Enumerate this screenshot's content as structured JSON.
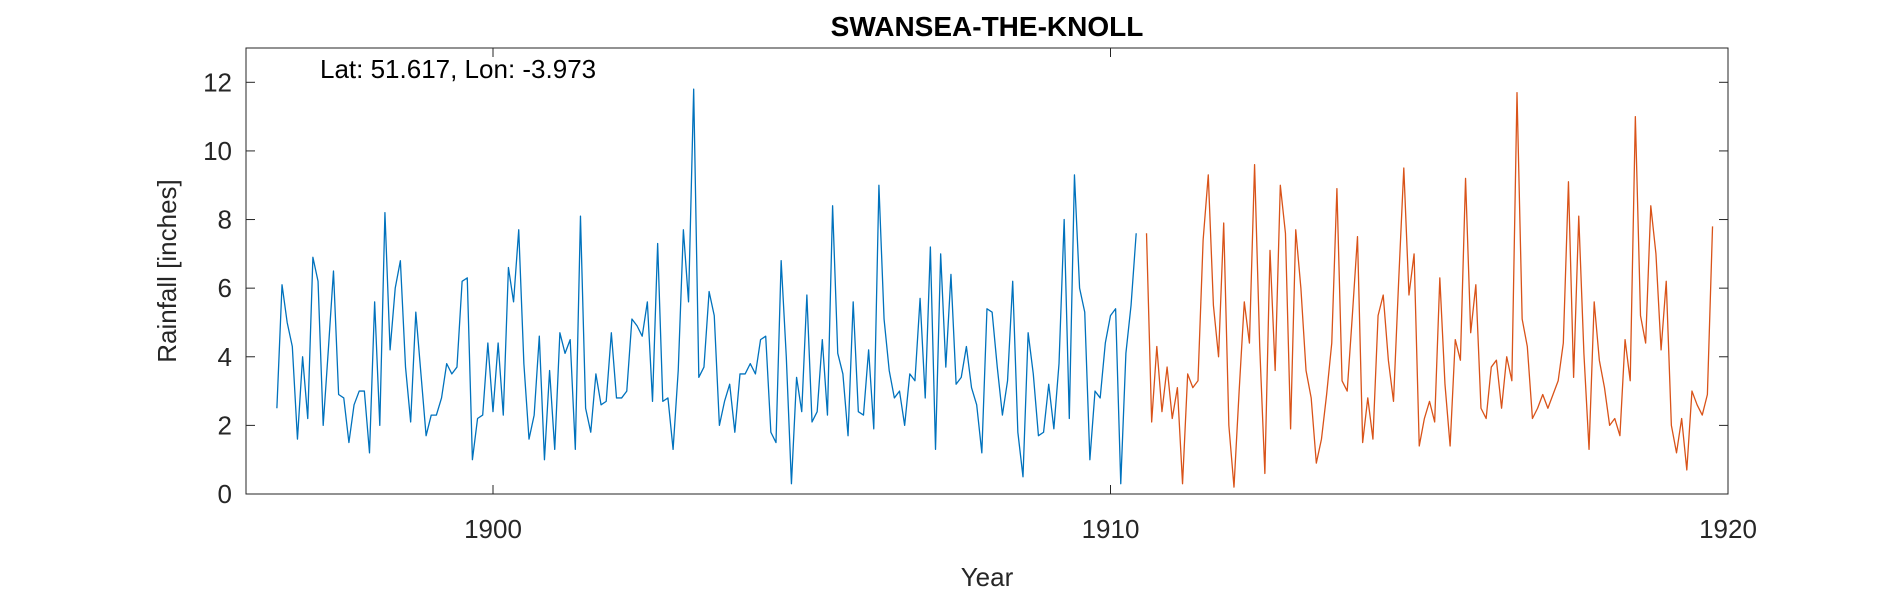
{
  "chart_data": {
    "type": "line",
    "title": "SWANSEA-THE-KNOLL",
    "annotation": "Lat: 51.617, Lon: -3.973",
    "xlabel": "Year",
    "ylabel": "Rainfall [inches]",
    "xlim": [
      1896,
      1920
    ],
    "ylim": [
      0,
      13
    ],
    "xticks": [
      1900,
      1910,
      1920
    ],
    "yticks": [
      0,
      2,
      4,
      6,
      8,
      10,
      12
    ],
    "grid": false,
    "series": [
      {
        "color": "#0072BD",
        "x_start": 1896.5,
        "x_step": 0.08333,
        "values": [
          2.5,
          6.1,
          5.0,
          4.3,
          1.6,
          4.0,
          2.2,
          6.9,
          6.2,
          2.0,
          4.2,
          6.5,
          2.9,
          2.8,
          1.5,
          2.6,
          3.0,
          3.0,
          1.2,
          5.6,
          2.0,
          8.2,
          4.2,
          6.0,
          6.8,
          3.7,
          2.1,
          5.3,
          3.5,
          1.7,
          2.3,
          2.3,
          2.8,
          3.8,
          3.5,
          3.7,
          6.2,
          6.3,
          1.0,
          2.2,
          2.3,
          4.4,
          2.4,
          4.4,
          2.3,
          6.6,
          5.6,
          7.7,
          3.8,
          1.6,
          2.3,
          4.6,
          1.0,
          3.6,
          1.3,
          4.7,
          4.1,
          4.5,
          1.3,
          8.1,
          2.5,
          1.8,
          3.5,
          2.6,
          2.7,
          4.7,
          2.8,
          2.8,
          3.0,
          5.1,
          4.9,
          4.6,
          5.6,
          2.7,
          7.3,
          2.7,
          2.8,
          1.3,
          3.6,
          7.7,
          5.6,
          11.8,
          3.4,
          3.7,
          5.9,
          5.2,
          2.0,
          2.7,
          3.2,
          1.8,
          3.5,
          3.5,
          3.8,
          3.5,
          4.5,
          4.6,
          1.8,
          1.5,
          6.8,
          4.0,
          0.3,
          3.4,
          2.4,
          5.8,
          2.1,
          2.4,
          4.5,
          2.3,
          8.4,
          4.1,
          3.5,
          1.7,
          5.6,
          2.4,
          2.3,
          4.2,
          1.9,
          9.0,
          5.1,
          3.6,
          2.8,
          3.0,
          2.0,
          3.5,
          3.3,
          5.7,
          2.8,
          7.2,
          1.3,
          7.0,
          3.7,
          6.4,
          3.2,
          3.4,
          4.3,
          3.1,
          2.6,
          1.2,
          5.4,
          5.3,
          3.7,
          2.3,
          3.3,
          6.2,
          1.8,
          0.5,
          4.7,
          3.5,
          1.7,
          1.8,
          3.2,
          1.9,
          3.8,
          8.0,
          2.2,
          9.3,
          6.0,
          5.3,
          1.0,
          3.0,
          2.8,
          4.4,
          5.2,
          5.4,
          0.3,
          4.1,
          5.5,
          7.6
        ]
      },
      {
        "color": "#D95319",
        "x_start": 1910.5833,
        "x_step": 0.08333,
        "values": [
          7.6,
          2.1,
          4.3,
          2.4,
          3.7,
          2.2,
          3.1,
          0.3,
          3.5,
          3.1,
          3.3,
          7.4,
          9.3,
          5.5,
          4.0,
          7.9,
          2.0,
          0.2,
          3.0,
          5.6,
          4.4,
          9.6,
          4.3,
          0.6,
          7.1,
          3.6,
          9.0,
          7.6,
          1.9,
          7.7,
          6.0,
          3.6,
          2.8,
          0.9,
          1.6,
          2.9,
          4.4,
          8.9,
          3.3,
          3.0,
          5.2,
          7.5,
          1.5,
          2.8,
          1.6,
          5.2,
          5.8,
          3.9,
          2.7,
          6.2,
          9.5,
          5.8,
          7.0,
          1.4,
          2.2,
          2.7,
          2.1,
          6.3,
          3.2,
          1.4,
          4.5,
          3.9,
          9.2,
          4.7,
          6.1,
          2.5,
          2.2,
          3.7,
          3.9,
          2.5,
          4.0,
          3.3,
          11.7,
          5.1,
          4.3,
          2.2,
          2.5,
          2.9,
          2.5,
          2.9,
          3.3,
          4.4,
          9.1,
          3.4,
          8.1,
          4.1,
          1.3,
          5.6,
          3.9,
          3.1,
          2.0,
          2.2,
          1.7,
          4.5,
          3.3,
          11.0,
          5.2,
          4.4,
          8.4,
          7.0,
          4.2,
          6.2,
          2.0,
          1.2,
          2.2,
          0.7,
          3.0,
          2.6,
          2.3,
          2.9,
          7.8
        ]
      }
    ]
  }
}
